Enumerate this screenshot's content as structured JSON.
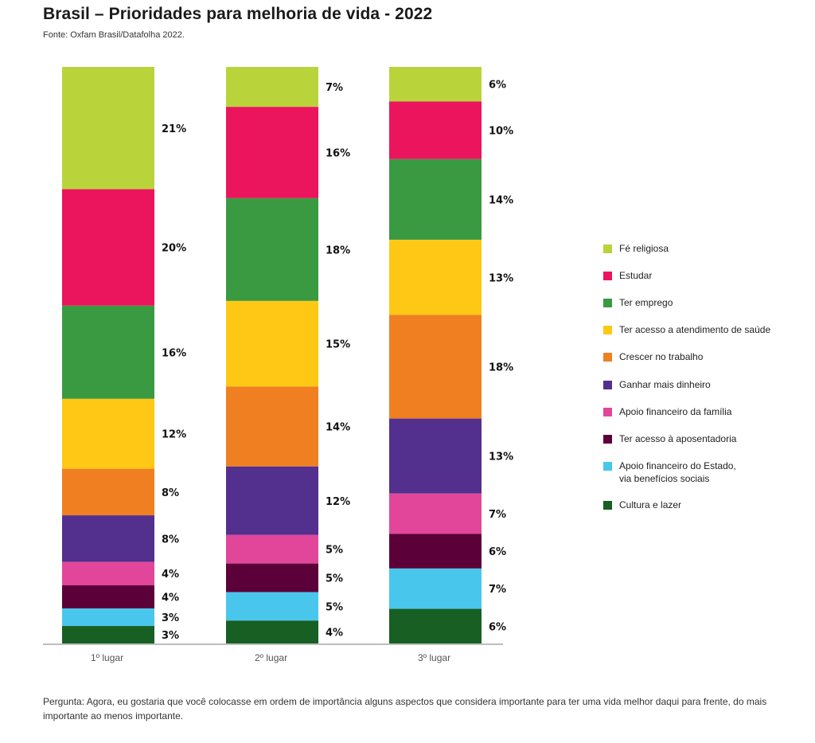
{
  "header": {
    "title": "Brasil – Prioridades para melhoria de vida - 2022",
    "source": "Fonte: Oxfam Brasil/Datafolha 2022."
  },
  "footnote": "Pergunta: Agora, eu gostaria que você colocasse em ordem de importância alguns aspectos que considera importante para ter uma vida melhor daqui para frente, do mais importante ao menos importante.",
  "chart_data": {
    "type": "bar",
    "stacked": true,
    "orientation": "vertical",
    "title": "Brasil – Prioridades para melhoria de vida - 2022",
    "subtitle": "Fonte: Oxfam Brasil/Datafolha 2022.",
    "xlabel": "",
    "ylabel": "",
    "unit": "%",
    "grid": false,
    "legend_position": "right",
    "categories": [
      "1º lugar",
      "2º lugar",
      "3º lugar"
    ],
    "series": [
      {
        "name": "Fé religiosa",
        "color": "#b9d43a",
        "values": [
          21,
          7,
          6
        ]
      },
      {
        "name": "Estudar",
        "color": "#eb155d",
        "values": [
          20,
          16,
          10
        ]
      },
      {
        "name": "Ter emprego",
        "color": "#3a9a42",
        "values": [
          16,
          18,
          14
        ]
      },
      {
        "name": "Ter acesso a atendimento de saúde",
        "color": "#fec814",
        "values": [
          12,
          15,
          13
        ]
      },
      {
        "name": "Crescer no trabalho",
        "color": "#f07f22",
        "values": [
          8,
          14,
          18
        ]
      },
      {
        "name": "Ganhar mais dinheiro",
        "color": "#532f8e",
        "values": [
          8,
          12,
          13
        ]
      },
      {
        "name": "Apoio financeiro da família",
        "color": "#e2469b",
        "values": [
          4,
          5,
          7
        ]
      },
      {
        "name": "Ter acesso à aposentadoria",
        "color": "#5c0039",
        "values": [
          4,
          5,
          6
        ]
      },
      {
        "name": "Apoio financeiro do Estado,\nvia benefícios sociais",
        "color": "#49c6ec",
        "values": [
          3,
          5,
          7
        ]
      },
      {
        "name": "Cultura e lazer",
        "color": "#175f22",
        "values": [
          3,
          4,
          6
        ]
      }
    ]
  }
}
